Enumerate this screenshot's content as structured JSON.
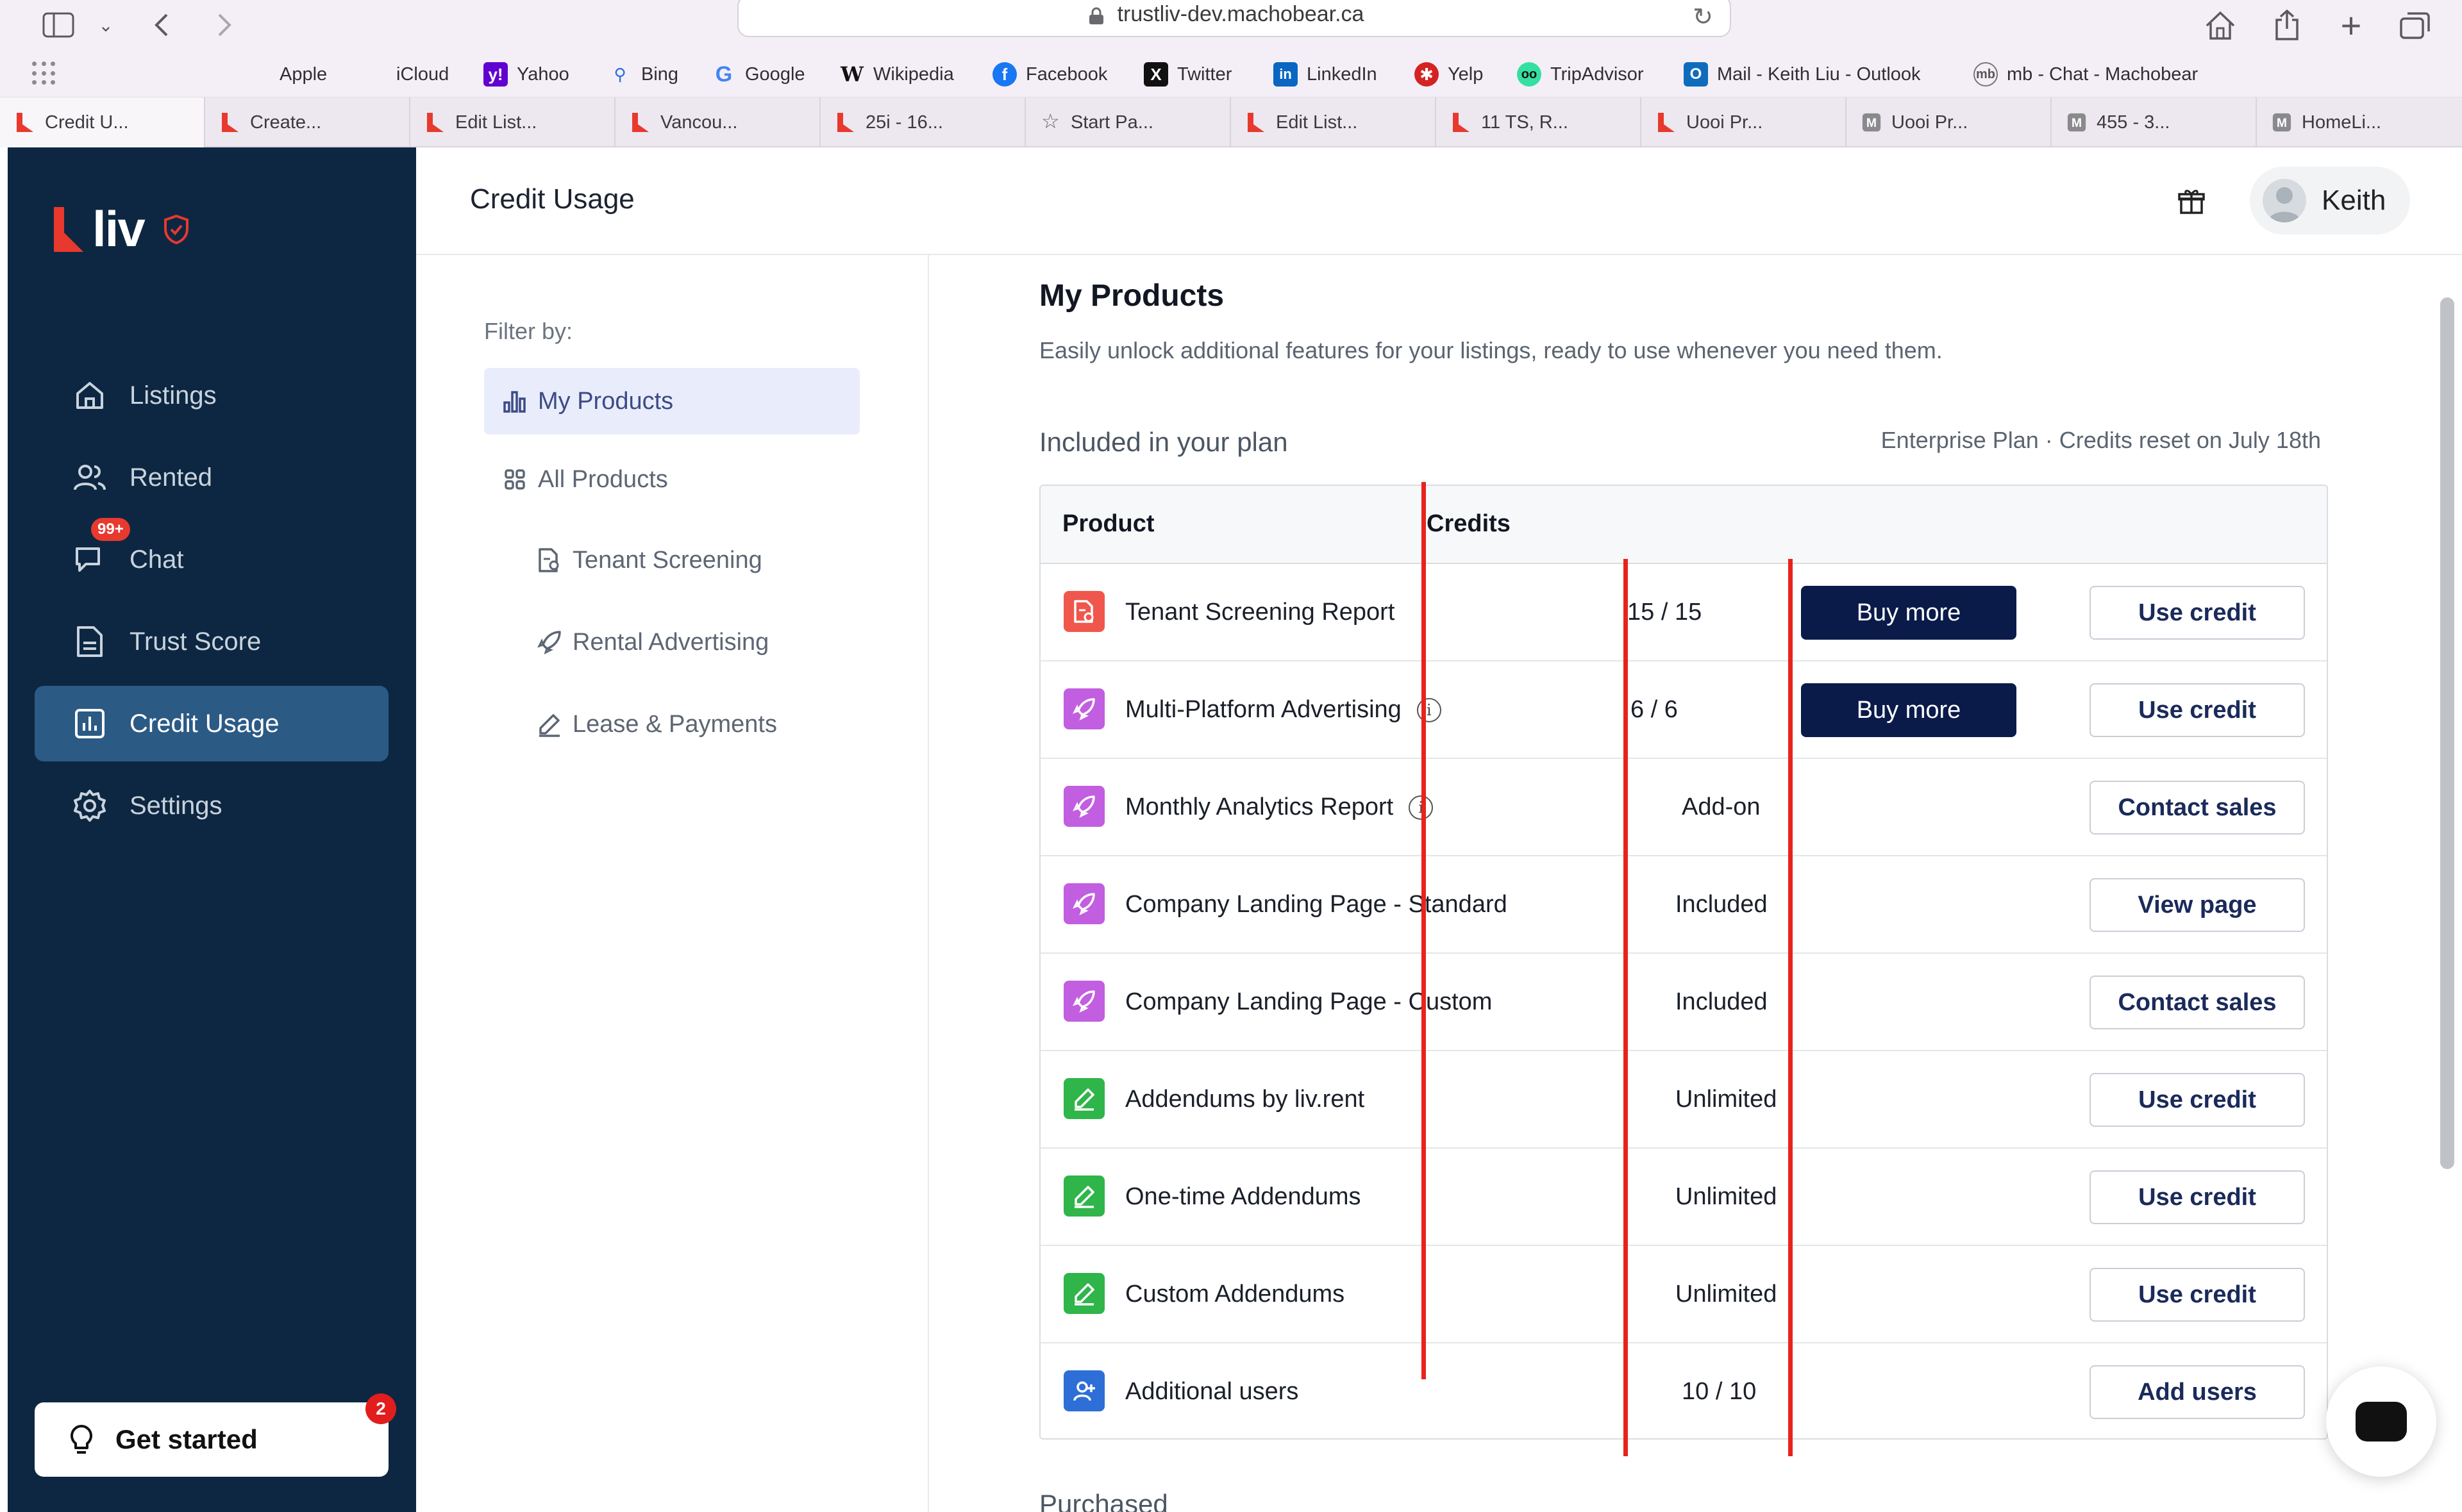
{
  "browser": {
    "url": "trustliv-dev.machobear.ca",
    "favorites": [
      {
        "label": "Apple",
        "icon": "apple-icon"
      },
      {
        "label": "iCloud",
        "icon": "apple-icon"
      },
      {
        "label": "Yahoo",
        "icon": "yahoo-icon"
      },
      {
        "label": "Bing",
        "icon": "search-icon"
      },
      {
        "label": "Google",
        "icon": "google-icon"
      },
      {
        "label": "Wikipedia",
        "icon": "wikipedia-icon"
      },
      {
        "label": "Facebook",
        "icon": "facebook-icon"
      },
      {
        "label": "Twitter",
        "icon": "x-icon"
      },
      {
        "label": "LinkedIn",
        "icon": "linkedin-icon"
      },
      {
        "label": "Yelp",
        "icon": "yelp-icon"
      },
      {
        "label": "TripAdvisor",
        "icon": "tripadvisor-icon"
      },
      {
        "label": "Mail - Keith Liu - Outlook",
        "icon": "outlook-icon"
      },
      {
        "label": "mb - Chat - Machobear",
        "icon": "machobear-icon"
      }
    ],
    "tabs": [
      {
        "label": "Credit U..."
      },
      {
        "label": "Create..."
      },
      {
        "label": "Edit List..."
      },
      {
        "label": "Vancou..."
      },
      {
        "label": "25i - 16..."
      },
      {
        "label": "Start Pa..."
      },
      {
        "label": "Edit List..."
      },
      {
        "label": "11 TS, R..."
      },
      {
        "label": "Uooi Pr..."
      },
      {
        "label": "Uooi Pr..."
      },
      {
        "label": "455 - 3..."
      },
      {
        "label": "HomeLi..."
      }
    ]
  },
  "sidebar": {
    "logo_text": "liv",
    "items": [
      {
        "label": "Listings"
      },
      {
        "label": "Rented"
      },
      {
        "label": "Chat",
        "badge": "99+"
      },
      {
        "label": "Trust Score"
      },
      {
        "label": "Credit Usage"
      },
      {
        "label": "Settings"
      }
    ],
    "get_started": {
      "label": "Get started",
      "badge": "2"
    }
  },
  "header": {
    "title": "Credit Usage",
    "user_name": "Keith"
  },
  "filter": {
    "label": "Filter by:",
    "items": [
      {
        "label": "My Products"
      },
      {
        "label": "All Products"
      },
      {
        "label": "Tenant Screening"
      },
      {
        "label": "Rental Advertising"
      },
      {
        "label": "Lease & Payments"
      }
    ]
  },
  "main": {
    "title": "My Products",
    "subtitle": "Easily unlock additional features for your listings, ready to use whenever you need them.",
    "included_heading": "Included in your plan",
    "plan_info": "Enterprise Plan · Credits reset on July 18th",
    "table": {
      "headers": {
        "product": "Product",
        "credits": "Credits"
      },
      "rows": [
        {
          "product": "Tenant Screening Report",
          "credits": "15 / 15",
          "buy": "Buy more",
          "action": "Use credit",
          "color": "#f0574c",
          "info": false
        },
        {
          "product": "Multi-Platform Advertising",
          "credits": "6 / 6",
          "buy": "Buy more",
          "action": "Use credit",
          "color": "#c25ee0",
          "info": true
        },
        {
          "product": "Monthly Analytics Report",
          "credits": "Add-on",
          "buy": "",
          "action": "Contact sales",
          "color": "#c25ee0",
          "info": true
        },
        {
          "product": "Company Landing Page - Standard",
          "credits": "Included",
          "buy": "",
          "action": "View page",
          "color": "#c25ee0",
          "info": false
        },
        {
          "product": "Company Landing Page - Custom",
          "credits": "Included",
          "buy": "",
          "action": "Contact sales",
          "color": "#c25ee0",
          "info": false
        },
        {
          "product": "Addendums by liv.rent",
          "credits": "Unlimited",
          "buy": "",
          "action": "Use credit",
          "color": "#2fb54a",
          "info": false
        },
        {
          "product": "One-time Addendums",
          "credits": "Unlimited",
          "buy": "",
          "action": "Use credit",
          "color": "#2fb54a",
          "info": false
        },
        {
          "product": "Custom Addendums",
          "credits": "Unlimited",
          "buy": "",
          "action": "Use credit",
          "color": "#2fb54a",
          "info": false
        },
        {
          "product": "Additional users",
          "credits": "10 / 10",
          "buy": "",
          "action": "Add users",
          "color": "#2d6fd6",
          "info": false
        }
      ]
    },
    "purchased_heading": "Purchased"
  }
}
